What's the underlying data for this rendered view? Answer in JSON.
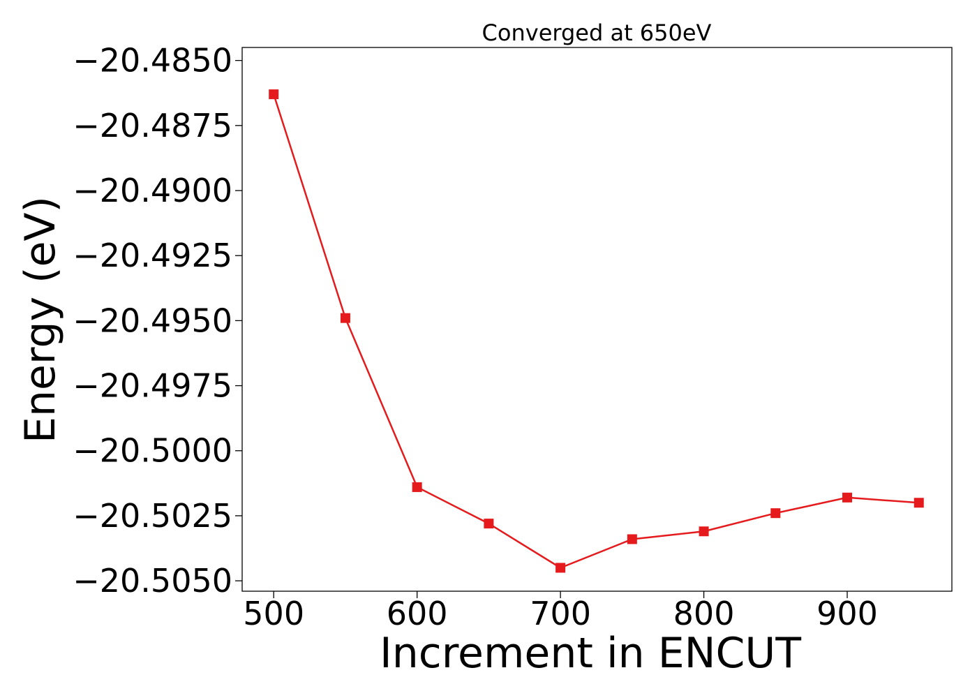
{
  "chart_data": {
    "type": "line",
    "title": "Converged at 650eV",
    "xlabel": "Increment in ENCUT",
    "ylabel": "Energy (eV)",
    "x": [
      500,
      550,
      600,
      650,
      700,
      750,
      800,
      850,
      900,
      950
    ],
    "series": [
      {
        "color": "#e41a1c",
        "marker": "square",
        "values": [
          -20.4863,
          -20.4949,
          -20.5014,
          -20.5028,
          -20.5045,
          -20.5034,
          -20.5031,
          -20.5024,
          -20.5018,
          -20.502
        ]
      }
    ],
    "xlim": [
      478,
      973
    ],
    "ylim": [
      -20.5054,
      -20.4845
    ],
    "xticks": [
      500,
      600,
      700,
      800,
      900
    ],
    "xtick_labels": [
      "500",
      "600",
      "700",
      "800",
      "900"
    ],
    "yticks": [
      -20.485,
      -20.4875,
      -20.49,
      -20.4925,
      -20.495,
      -20.4975,
      -20.5,
      -20.5025,
      -20.505
    ],
    "ytick_labels": [
      "−20.4850",
      "−20.4875",
      "−20.4900",
      "−20.4925",
      "−20.4950",
      "−20.4975",
      "−20.5000",
      "−20.5025",
      "−20.5050"
    ],
    "grid": false,
    "legend": "none"
  }
}
